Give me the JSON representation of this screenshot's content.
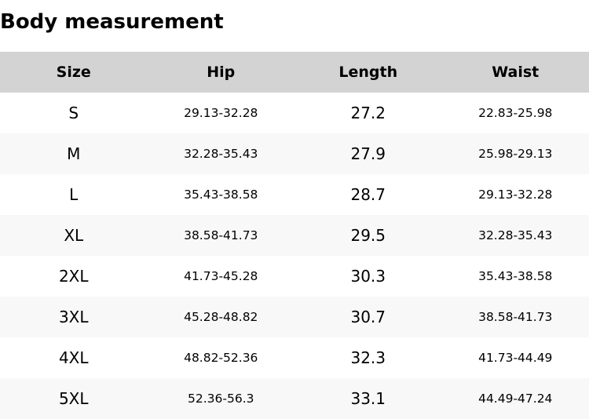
{
  "title": "Body measurement",
  "table": {
    "headers": [
      "Size",
      "Hip",
      "Length",
      "Waist"
    ],
    "rows": [
      {
        "size": "S",
        "hip": "29.13-32.28",
        "length": "27.2",
        "waist": "22.83-25.98"
      },
      {
        "size": "M",
        "hip": "32.28-35.43",
        "length": "27.9",
        "waist": "25.98-29.13"
      },
      {
        "size": "L",
        "hip": "35.43-38.58",
        "length": "28.7",
        "waist": "29.13-32.28"
      },
      {
        "size": "XL",
        "hip": "38.58-41.73",
        "length": "29.5",
        "waist": "32.28-35.43"
      },
      {
        "size": "2XL",
        "hip": "41.73-45.28",
        "length": "30.3",
        "waist": "35.43-38.58"
      },
      {
        "size": "3XL",
        "hip": "45.28-48.82",
        "length": "30.7",
        "waist": "38.58-41.73"
      },
      {
        "size": "4XL",
        "hip": "48.82-52.36",
        "length": "32.3",
        "waist": "41.73-44.49"
      },
      {
        "size": "5XL",
        "hip": "52.36-56.3",
        "length": "33.1",
        "waist": "44.49-47.24"
      }
    ]
  },
  "colors": {
    "header_bg": "#d3d3d3",
    "alt_row_bg": "#f8f8f8"
  }
}
